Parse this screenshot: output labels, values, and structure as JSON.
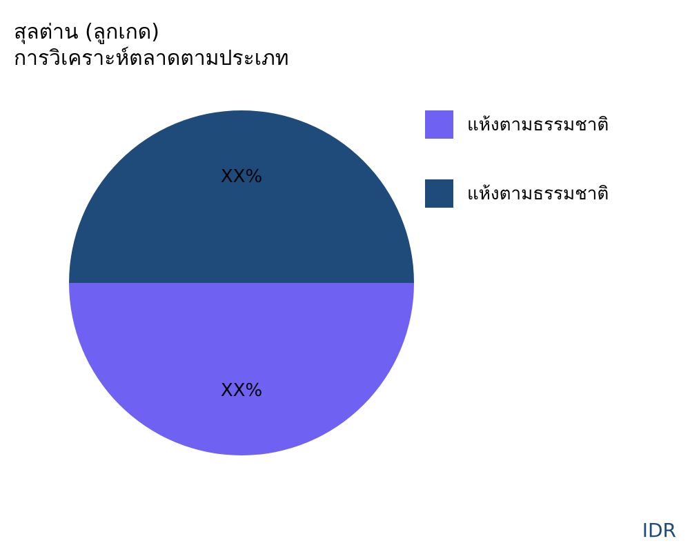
{
  "chart_data": {
    "type": "pie",
    "title": "สุลต่าน (ลูกเกด)",
    "subtitle": "การวิเคราะห์ตลาดตามประเภท",
    "slices": [
      {
        "label": "แห้งตามธรรมชาติ",
        "value": 50,
        "data_label": "XX%",
        "color": "#6f61f2"
      },
      {
        "label": "แห้งตามธรรมชาติ",
        "value": 50,
        "data_label": "XX%",
        "color": "#1f4b7a"
      }
    ],
    "legend_placement": "right"
  },
  "brand": "IDR"
}
